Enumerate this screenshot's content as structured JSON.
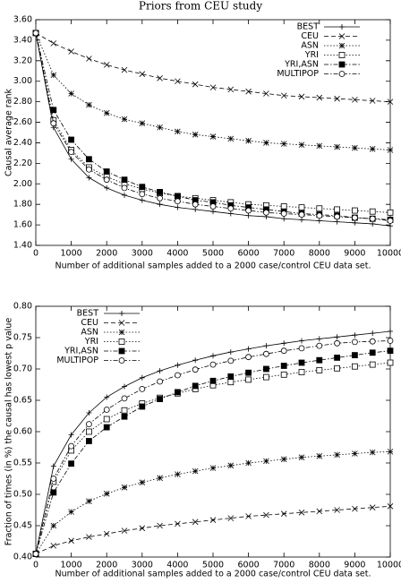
{
  "chart_data": [
    {
      "type": "line",
      "title": "Priors from CEU study",
      "x_label": "Number of additional samples added to a 2000 case/control CEU data set.",
      "y_label": "Causal average rank",
      "x": [
        0,
        500,
        1000,
        1500,
        2000,
        2500,
        3000,
        3500,
        4000,
        4500,
        5000,
        5500,
        6000,
        6500,
        7000,
        7500,
        8000,
        8500,
        9000,
        9500,
        10000
      ],
      "xlim": [
        0,
        10000
      ],
      "xticks": [
        0,
        1000,
        2000,
        3000,
        4000,
        5000,
        6000,
        7000,
        8000,
        9000,
        10000
      ],
      "ylim": [
        1.4,
        3.6
      ],
      "yticks": [
        {
          "value": 1.4,
          "label": "1.40"
        },
        {
          "value": 1.6,
          "label": "1.60"
        },
        {
          "value": 1.8,
          "label": "1.80"
        },
        {
          "value": 2.0,
          "label": "2.00"
        },
        {
          "value": 2.2,
          "label": "2.20"
        },
        {
          "value": 2.4,
          "label": "2.40"
        },
        {
          "value": 2.6,
          "label": "2.60"
        },
        {
          "value": 2.8,
          "label": "2.80"
        },
        {
          "value": 3.0,
          "label": "3.00"
        },
        {
          "value": 3.2,
          "label": "3.20"
        },
        {
          "value": 3.4,
          "label": "3.40"
        },
        {
          "value": 3.6,
          "label": "3.60"
        }
      ],
      "legend": "top-right",
      "series": [
        {
          "name": "BEST",
          "color": "#000000",
          "marker": "plus",
          "dash": "solid",
          "values": [
            3.47,
            2.55,
            2.24,
            2.06,
            1.96,
            1.89,
            1.84,
            1.8,
            1.77,
            1.75,
            1.73,
            1.71,
            1.69,
            1.68,
            1.66,
            1.65,
            1.64,
            1.63,
            1.62,
            1.61,
            1.59
          ]
        },
        {
          "name": "CEU",
          "color": "#000000",
          "marker": "cross",
          "dash": "dashed",
          "values": [
            3.47,
            3.37,
            3.29,
            3.22,
            3.16,
            3.11,
            3.07,
            3.03,
            3.0,
            2.97,
            2.94,
            2.92,
            2.9,
            2.88,
            2.86,
            2.85,
            2.84,
            2.83,
            2.82,
            2.81,
            2.8
          ]
        },
        {
          "name": "ASN",
          "color": "#000000",
          "marker": "star",
          "dash": "dotted",
          "values": [
            3.47,
            3.06,
            2.88,
            2.77,
            2.69,
            2.63,
            2.59,
            2.55,
            2.51,
            2.48,
            2.46,
            2.44,
            2.42,
            2.4,
            2.39,
            2.38,
            2.37,
            2.36,
            2.35,
            2.34,
            2.33
          ]
        },
        {
          "name": "YRI",
          "color": "#000000",
          "marker": "square",
          "dash": "dotted",
          "values": [
            3.47,
            2.62,
            2.33,
            2.16,
            2.07,
            2.0,
            1.95,
            1.91,
            1.88,
            1.86,
            1.84,
            1.82,
            1.8,
            1.79,
            1.78,
            1.77,
            1.76,
            1.75,
            1.74,
            1.73,
            1.72
          ]
        },
        {
          "name": "YRI,ASN",
          "color": "#000000",
          "marker": "filled-square",
          "dash": "dashdot",
          "values": [
            3.47,
            2.72,
            2.43,
            2.24,
            2.12,
            2.04,
            1.97,
            1.92,
            1.88,
            1.84,
            1.82,
            1.79,
            1.77,
            1.75,
            1.73,
            1.71,
            1.7,
            1.69,
            1.67,
            1.66,
            1.65
          ]
        },
        {
          "name": "MULTIPOP",
          "color": "#000000",
          "marker": "circle",
          "dash": "dashdot",
          "values": [
            3.47,
            2.59,
            2.31,
            2.14,
            2.04,
            1.96,
            1.9,
            1.86,
            1.83,
            1.8,
            1.78,
            1.76,
            1.74,
            1.72,
            1.71,
            1.7,
            1.69,
            1.68,
            1.67,
            1.66,
            1.64
          ]
        }
      ]
    },
    {
      "type": "line",
      "x_label": "Number of additional samples added to a 2000 case/control CEU data set.",
      "y_label": "Fraction of times (in %) the causal has lowest p value",
      "x": [
        0,
        500,
        1000,
        1500,
        2000,
        2500,
        3000,
        3500,
        4000,
        4500,
        5000,
        5500,
        6000,
        6500,
        7000,
        7500,
        8000,
        8500,
        9000,
        9500,
        10000
      ],
      "xlim": [
        0,
        10000
      ],
      "xticks": [
        0,
        1000,
        2000,
        3000,
        4000,
        5000,
        6000,
        7000,
        8000,
        9000,
        10000
      ],
      "ylim": [
        0.4,
        0.8
      ],
      "yticks": [
        {
          "value": 0.4,
          "label": "0.40"
        },
        0.45,
        {
          "value": 0.5,
          "label": "0.50"
        },
        0.55,
        {
          "value": 0.6,
          "label": "0.60"
        },
        0.65,
        {
          "value": 0.7,
          "label": "0.70"
        },
        0.75,
        {
          "value": 0.8,
          "label": "0.80"
        }
      ],
      "legend": "top-left",
      "series": [
        {
          "name": "BEST",
          "color": "#000000",
          "marker": "plus",
          "dash": "solid",
          "values": [
            0.405,
            0.545,
            0.595,
            0.63,
            0.655,
            0.672,
            0.686,
            0.697,
            0.706,
            0.714,
            0.721,
            0.727,
            0.732,
            0.737,
            0.741,
            0.745,
            0.748,
            0.751,
            0.754,
            0.757,
            0.76
          ]
        },
        {
          "name": "CEU",
          "color": "#000000",
          "marker": "cross",
          "dash": "dashed",
          "values": [
            0.405,
            0.418,
            0.426,
            0.432,
            0.437,
            0.442,
            0.446,
            0.45,
            0.453,
            0.456,
            0.459,
            0.462,
            0.465,
            0.467,
            0.469,
            0.471,
            0.473,
            0.475,
            0.477,
            0.479,
            0.481
          ]
        },
        {
          "name": "ASN",
          "color": "#000000",
          "marker": "star",
          "dash": "dotted",
          "values": [
            0.405,
            0.45,
            0.472,
            0.489,
            0.501,
            0.511,
            0.519,
            0.526,
            0.532,
            0.537,
            0.542,
            0.546,
            0.55,
            0.553,
            0.556,
            0.559,
            0.561,
            0.563,
            0.565,
            0.567,
            0.568
          ]
        },
        {
          "name": "YRI",
          "color": "#000000",
          "marker": "square",
          "dash": "dotted",
          "values": [
            0.405,
            0.52,
            0.57,
            0.6,
            0.62,
            0.634,
            0.645,
            0.654,
            0.661,
            0.668,
            0.674,
            0.679,
            0.683,
            0.687,
            0.691,
            0.695,
            0.698,
            0.701,
            0.704,
            0.707,
            0.71
          ]
        },
        {
          "name": "YRI,ASN",
          "color": "#000000",
          "marker": "filled-square",
          "dash": "dashdot",
          "values": [
            0.405,
            0.503,
            0.549,
            0.585,
            0.607,
            0.624,
            0.64,
            0.652,
            0.663,
            0.673,
            0.681,
            0.688,
            0.694,
            0.7,
            0.705,
            0.71,
            0.714,
            0.718,
            0.722,
            0.726,
            0.729
          ]
        },
        {
          "name": "MULTIPOP",
          "color": "#000000",
          "marker": "circle",
          "dash": "dashdot",
          "values": [
            0.405,
            0.525,
            0.577,
            0.612,
            0.635,
            0.653,
            0.668,
            0.68,
            0.69,
            0.699,
            0.707,
            0.713,
            0.719,
            0.724,
            0.729,
            0.733,
            0.737,
            0.741,
            0.743,
            0.744,
            0.745
          ]
        }
      ]
    }
  ]
}
